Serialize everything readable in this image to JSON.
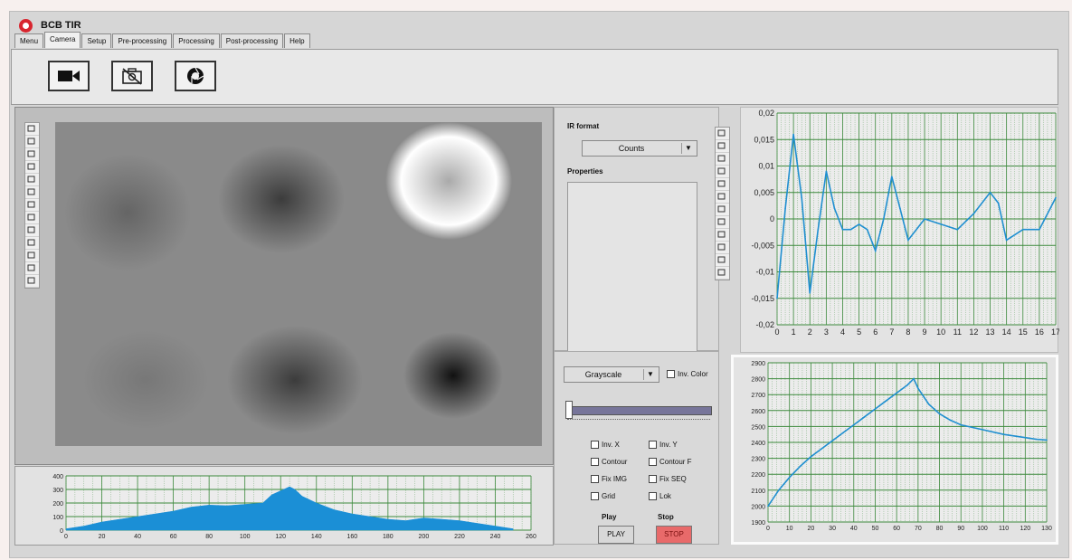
{
  "app": {
    "title": "BCB TIR"
  },
  "tabs": [
    "Menu",
    "Camera",
    "Setup",
    "Pre-processing",
    "Processing",
    "Post-processing",
    "Help"
  ],
  "active_tab": 1,
  "toolbar": {
    "icons": [
      "video-camera-icon",
      "camera-off-icon",
      "shutter-icon"
    ]
  },
  "controls": {
    "ir_format_label": "IR format",
    "ir_format_value": "Counts",
    "properties_label": "Properties",
    "colormap_value": "Grayscale",
    "inv_color_label": "Inv. Color",
    "checkboxes": [
      "Inv. X",
      "Inv. Y",
      "Contour",
      "Contour F",
      "Fix IMG",
      "Fix SEQ",
      "Grid",
      "Lok"
    ],
    "play_label": "Play",
    "play_button": "PLAY",
    "stop_label": "Stop",
    "stop_button": "STOP"
  },
  "colors": {
    "plot_line": "#1f8fd0",
    "grid": "#3d8a3d",
    "fill": "#1b8fd6",
    "stop": "#e86a6a"
  },
  "chart_data": [
    {
      "type": "bar",
      "title": "",
      "x_ticks": [
        0,
        20,
        40,
        60,
        80,
        100,
        120,
        140,
        160,
        180,
        200,
        220,
        240,
        260
      ],
      "y_ticks": [
        0,
        100,
        200,
        300,
        400
      ],
      "xlim": [
        0,
        260
      ],
      "ylim": [
        0,
        400
      ],
      "profile_x": [
        0,
        10,
        20,
        30,
        40,
        50,
        60,
        70,
        80,
        90,
        100,
        110,
        115,
        120,
        125,
        128,
        132,
        140,
        150,
        160,
        170,
        180,
        190,
        200,
        210,
        220,
        230,
        240,
        250
      ],
      "profile_y": [
        10,
        30,
        60,
        80,
        100,
        120,
        140,
        170,
        185,
        180,
        190,
        200,
        260,
        290,
        320,
        300,
        250,
        200,
        150,
        120,
        100,
        80,
        70,
        90,
        80,
        70,
        50,
        30,
        10
      ]
    },
    {
      "type": "line",
      "x": [
        0,
        0.5,
        1,
        1.5,
        2,
        2.5,
        3,
        3.5,
        4,
        4.5,
        5,
        5.5,
        6,
        6.5,
        7,
        7.5,
        8,
        9,
        10,
        11,
        12,
        13,
        13.5,
        14,
        15,
        16,
        17
      ],
      "y": [
        -0.015,
        0.002,
        0.016,
        0.004,
        -0.014,
        -0.002,
        0.009,
        0.002,
        -0.002,
        -0.002,
        -0.001,
        -0.002,
        -0.006,
        0.0,
        0.008,
        0.002,
        -0.004,
        0.0,
        -0.001,
        -0.002,
        0.001,
        0.005,
        0.003,
        -0.004,
        -0.002,
        -0.002,
        0.004
      ],
      "x_ticks": [
        0,
        1,
        2,
        3,
        4,
        5,
        6,
        7,
        8,
        9,
        10,
        11,
        12,
        13,
        14,
        15,
        16,
        17
      ],
      "y_ticks": [
        "-0,02",
        "-0,015",
        "-0,01",
        "-0,005",
        "0",
        "0,005",
        "0,01",
        "0,015",
        "0,02"
      ],
      "xlim": [
        0,
        17
      ],
      "ylim": [
        -0.02,
        0.02
      ]
    },
    {
      "type": "line",
      "x": [
        0,
        5,
        10,
        15,
        20,
        25,
        30,
        35,
        40,
        45,
        50,
        55,
        60,
        65,
        68,
        70,
        75,
        80,
        85,
        90,
        100,
        110,
        120,
        125,
        130
      ],
      "y": [
        2000,
        2100,
        2180,
        2250,
        2310,
        2360,
        2410,
        2460,
        2510,
        2560,
        2610,
        2660,
        2710,
        2760,
        2800,
        2740,
        2640,
        2580,
        2540,
        2510,
        2480,
        2450,
        2430,
        2420,
        2415
      ],
      "x_ticks": [
        0,
        10,
        20,
        30,
        40,
        50,
        60,
        70,
        80,
        90,
        100,
        110,
        120,
        130
      ],
      "y_ticks": [
        1900,
        2000,
        2100,
        2200,
        2300,
        2400,
        2500,
        2600,
        2700,
        2800,
        2900
      ],
      "xlim": [
        0,
        130
      ],
      "ylim": [
        1900,
        2900
      ]
    }
  ]
}
